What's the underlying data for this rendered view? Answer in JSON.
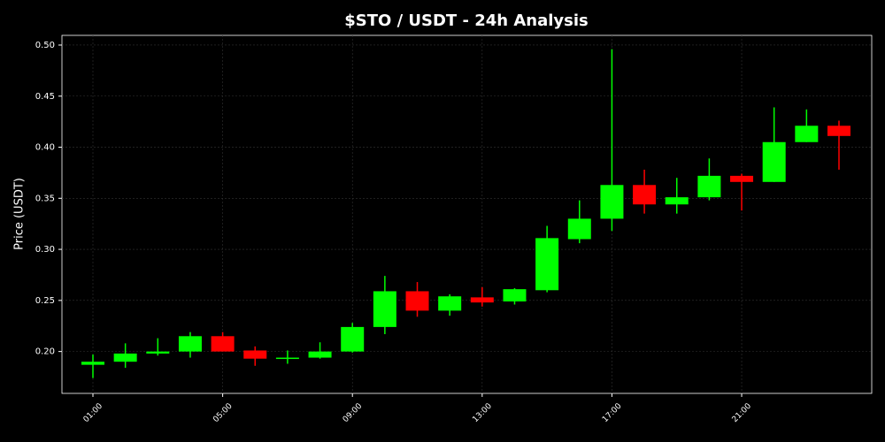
{
  "chart_data": {
    "type": "candlestick",
    "title": "$STO / USDT - 24h Analysis",
    "y_label": "Price (USDT)",
    "categories": [
      "01:00",
      null,
      null,
      null,
      "05:00",
      null,
      null,
      null,
      "09:00",
      null,
      null,
      null,
      "13:00",
      null,
      null,
      null,
      "17:00",
      null,
      null,
      null,
      "21:00",
      null,
      null,
      null
    ],
    "open": [
      0.187,
      0.19,
      0.198,
      0.2,
      0.215,
      0.201,
      0.193,
      0.194,
      0.2,
      0.224,
      0.259,
      0.24,
      0.253,
      0.249,
      0.26,
      0.31,
      0.33,
      0.363,
      0.344,
      0.351,
      0.372,
      0.366,
      0.405,
      0.421
    ],
    "high": [
      0.197,
      0.208,
      0.213,
      0.219,
      0.219,
      0.205,
      0.201,
      0.209,
      0.228,
      0.274,
      0.268,
      0.256,
      0.263,
      0.262,
      0.323,
      0.348,
      0.496,
      0.378,
      0.37,
      0.389,
      0.374,
      0.439,
      0.437,
      0.426
    ],
    "low": [
      0.174,
      0.184,
      0.196,
      0.194,
      0.2,
      0.186,
      0.188,
      0.193,
      0.199,
      0.217,
      0.234,
      0.235,
      0.244,
      0.246,
      0.258,
      0.306,
      0.318,
      0.335,
      0.335,
      0.348,
      0.338,
      0.366,
      0.405,
      0.378
    ],
    "close": [
      0.19,
      0.198,
      0.2,
      0.215,
      0.2,
      0.193,
      0.194,
      0.2,
      0.224,
      0.259,
      0.24,
      0.254,
      0.248,
      0.261,
      0.311,
      0.33,
      0.363,
      0.344,
      0.351,
      0.372,
      0.366,
      0.405,
      0.421,
      0.411
    ],
    "up_color": "#00ff00",
    "down_color": "#ff0000",
    "ylim": [
      0.159,
      0.5095
    ],
    "yticks": [
      {
        "value": 0.2,
        "label": "0.20"
      },
      {
        "value": 0.25,
        "label": "0.25"
      },
      {
        "value": 0.3,
        "label": "0.30"
      },
      {
        "value": 0.35,
        "label": "0.35"
      },
      {
        "value": 0.4,
        "label": "0.40"
      },
      {
        "value": 0.45,
        "label": "0.45"
      },
      {
        "value": 0.5,
        "label": "0.50"
      }
    ],
    "grid": true
  }
}
